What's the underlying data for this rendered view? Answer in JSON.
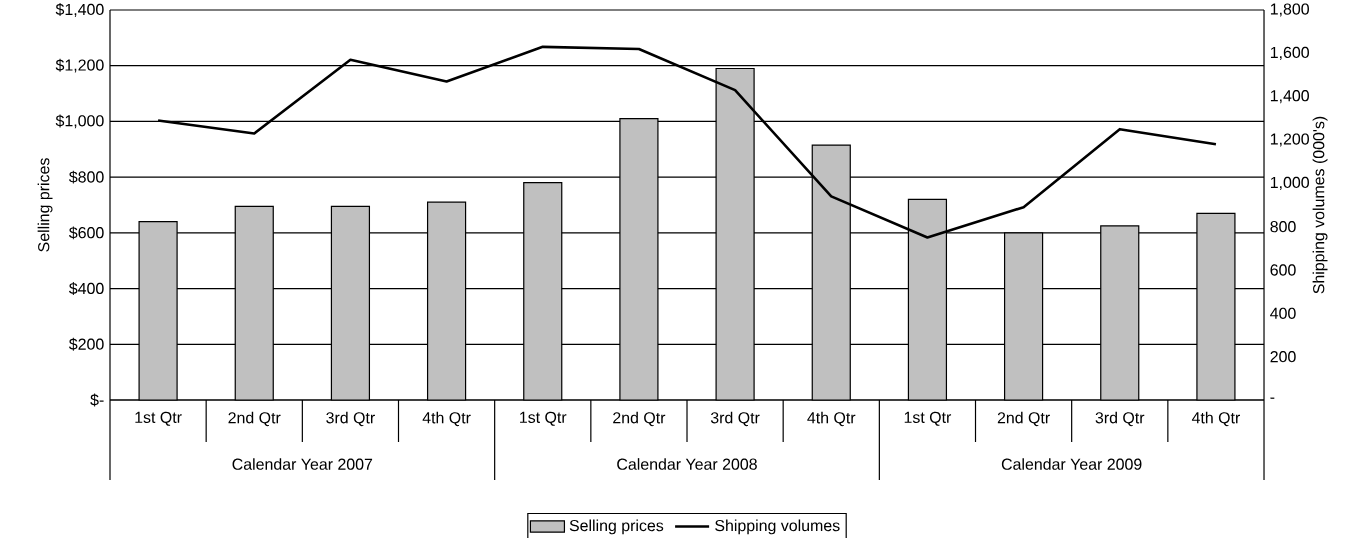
{
  "chart_data": {
    "type": "bar",
    "categories": [
      "1st Qtr",
      "2nd Qtr",
      "3rd Qtr",
      "4th Qtr",
      "1st Qtr",
      "2nd Qtr",
      "3rd Qtr",
      "4th Qtr",
      "1st Qtr",
      "2nd Qtr",
      "3rd Qtr",
      "4th Qtr"
    ],
    "series": [
      {
        "name": "Selling prices",
        "color": "#c0c0c0",
        "values": [
          640,
          695,
          695,
          710,
          780,
          1010,
          1190,
          915,
          720,
          600,
          625,
          670
        ]
      },
      {
        "name": "Shipping volumes",
        "type": "line",
        "axis": "y2",
        "color": "#000000",
        "values": [
          1290,
          1230,
          1570,
          1470,
          1630,
          1620,
          1430,
          940,
          750,
          890,
          1250,
          1180
        ]
      }
    ],
    "ylabel": "Selling prices",
    "y2label": "Shipping volumes (000's)",
    "ylim": [
      0,
      1400
    ],
    "yticks": [
      {
        "value": 0,
        "label": "$-"
      },
      {
        "value": 200,
        "label": "$200"
      },
      {
        "value": 400,
        "label": "$400"
      },
      {
        "value": 600,
        "label": "$600"
      },
      {
        "value": 800,
        "label": "$800"
      },
      {
        "value": 1000,
        "label": "$1,000"
      },
      {
        "value": 1200,
        "label": "$1,200"
      },
      {
        "value": 1400,
        "label": "$1,400"
      }
    ],
    "y2lim": [
      0,
      1800
    ],
    "y2ticks": [
      {
        "value": 0,
        "label": "-"
      },
      200,
      400,
      600,
      800,
      {
        "value": 1000,
        "label": "1,000"
      },
      {
        "value": 1200,
        "label": "1,200"
      },
      {
        "value": 1400,
        "label": "1,400"
      },
      {
        "value": 1600,
        "label": "1,600"
      },
      {
        "value": 1800,
        "label": "1,800"
      }
    ],
    "annotations": [
      "Calendar Year 2007",
      "Calendar Year 2008",
      "Calendar Year 2009"
    ],
    "grid": "y",
    "legend": "bottom",
    "marker": "none",
    "line_style": "solid"
  }
}
